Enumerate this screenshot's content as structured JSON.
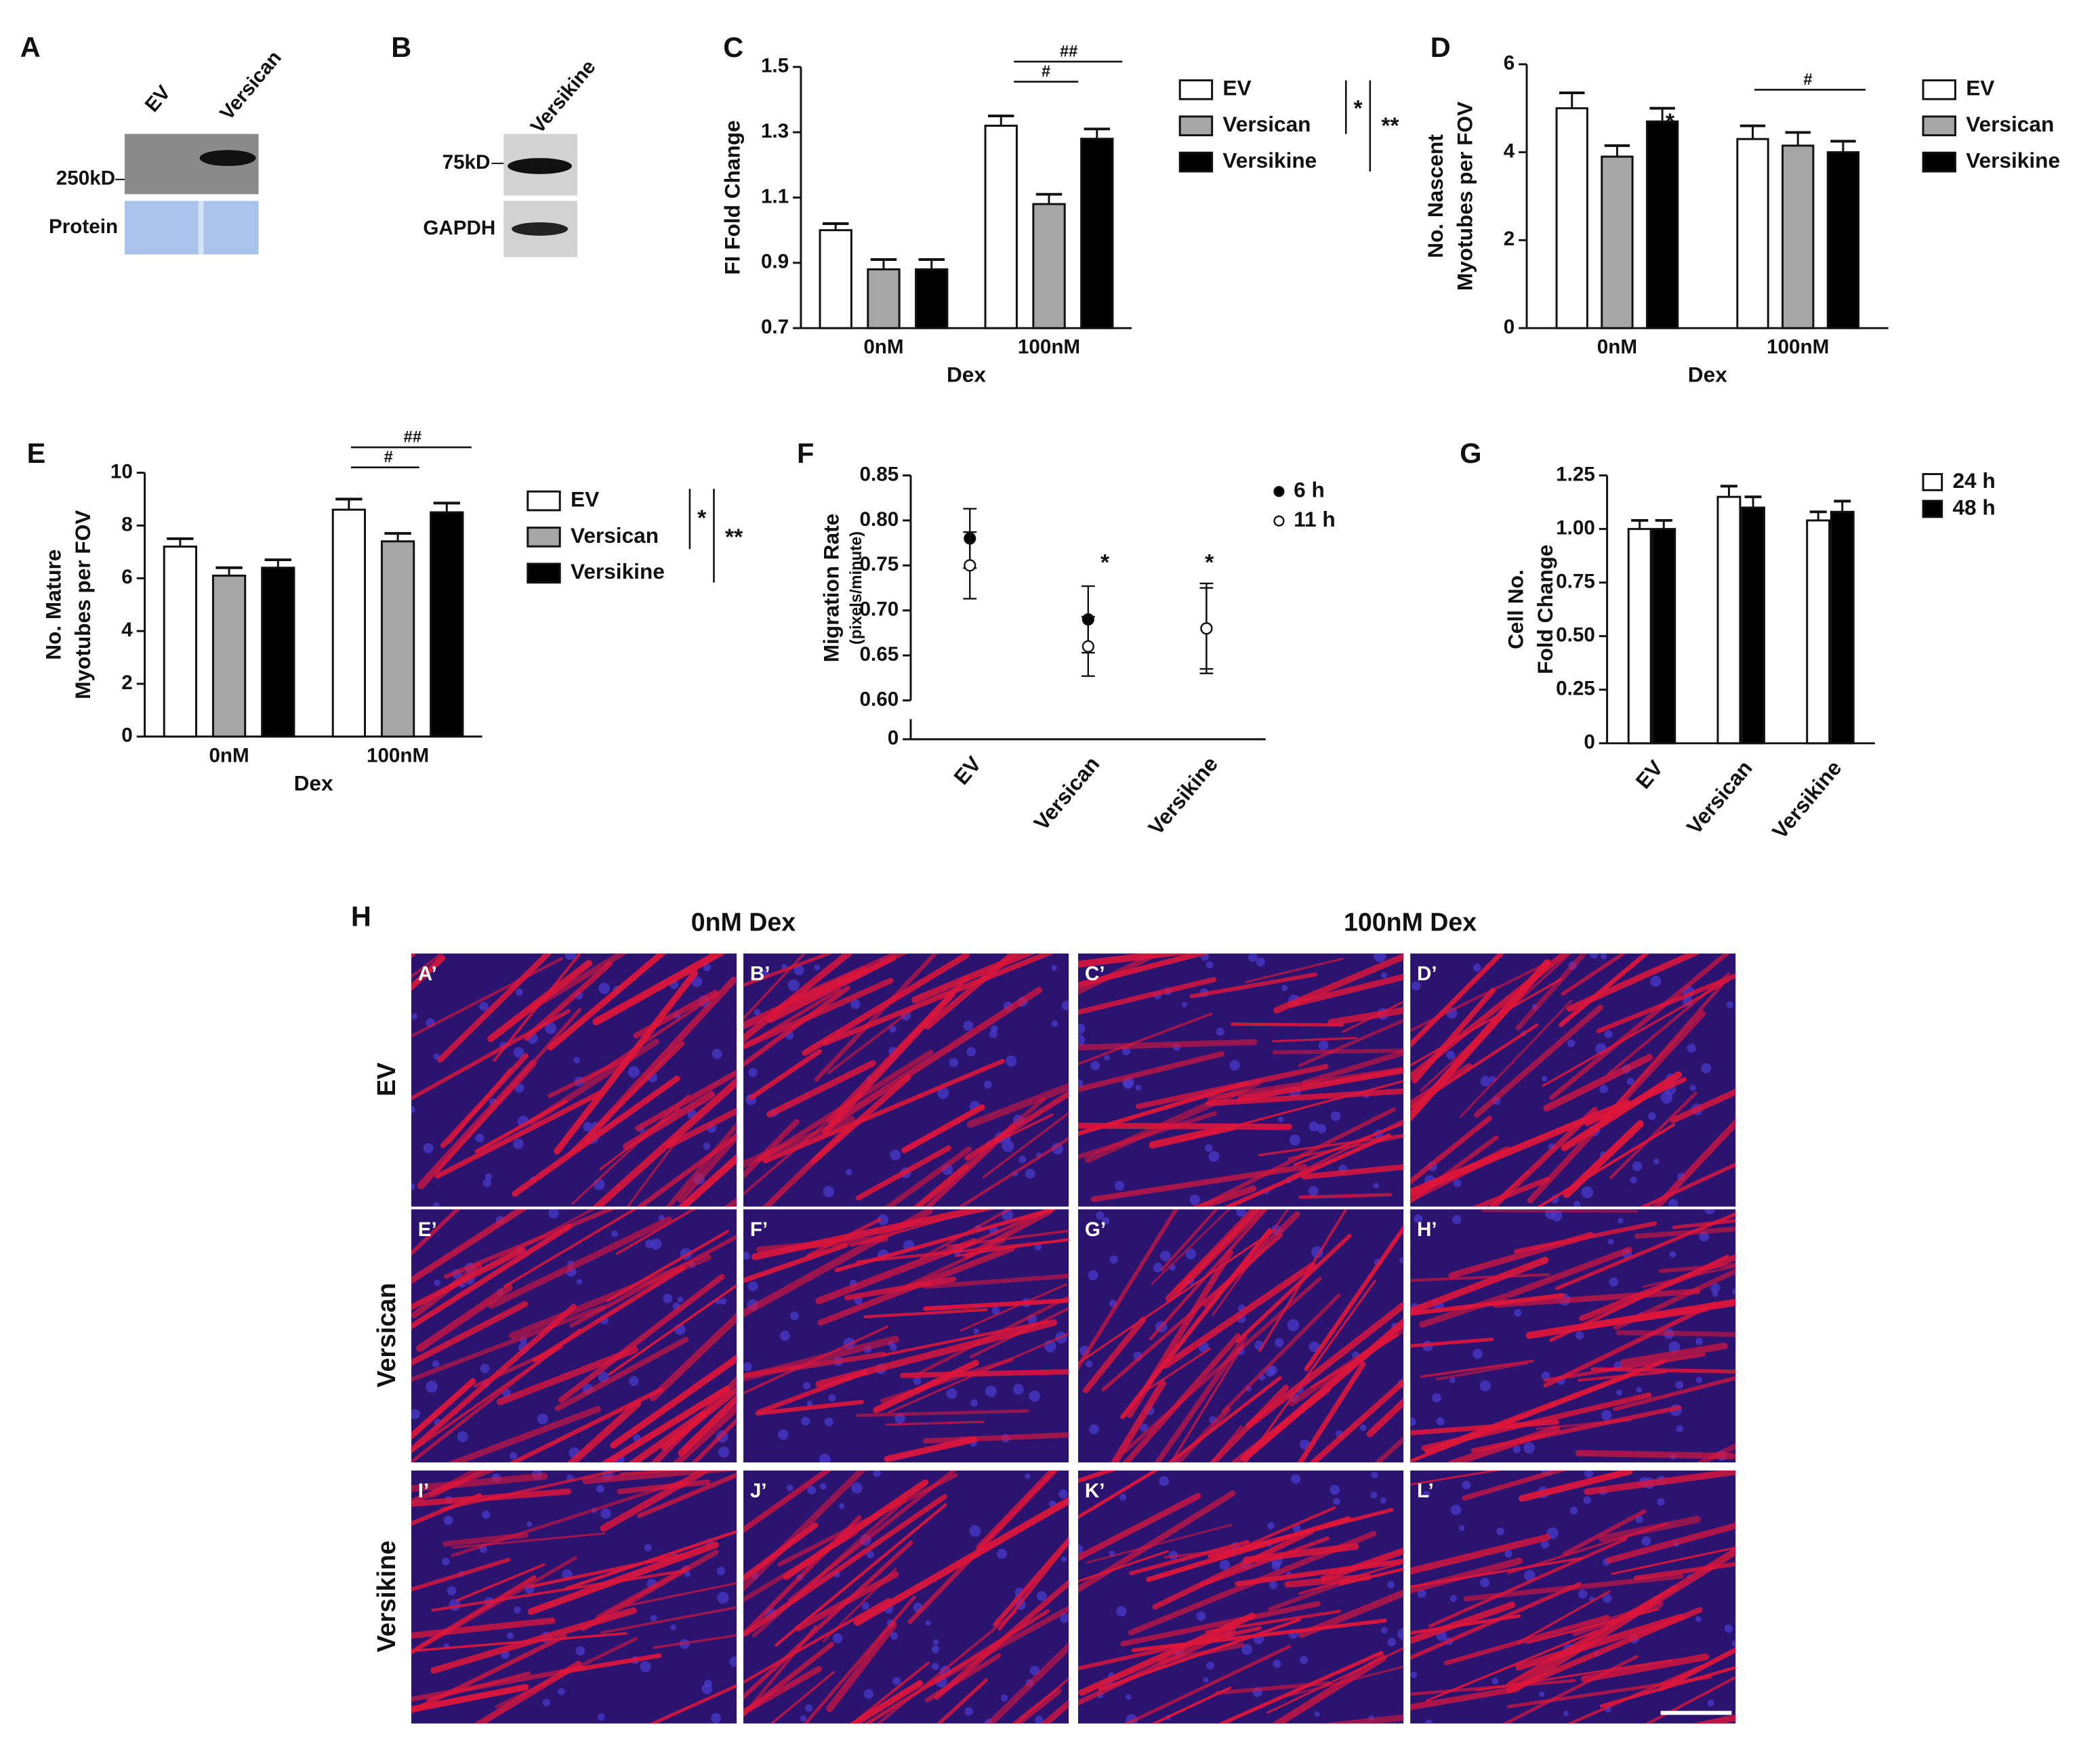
{
  "panels": {
    "A": {
      "label": "A",
      "lanes": [
        "EV",
        "Versican"
      ],
      "marker": "250kD",
      "row": "Protein"
    },
    "B": {
      "label": "B",
      "lanes": [
        "Versikine"
      ],
      "marker": "75kD",
      "row": "GAPDH"
    },
    "H": {
      "label": "H",
      "columns": [
        "0nM Dex",
        "100nM Dex"
      ],
      "rows": [
        "EV",
        "Versican",
        "Versikine"
      ],
      "images": [
        "A’",
        "B’",
        "C’",
        "D’",
        "E’",
        "F’",
        "G’",
        "H’",
        "I’",
        "J’",
        "K’",
        "L’"
      ]
    }
  },
  "chart_data": [
    {
      "type": "bar",
      "panel": "C",
      "ylabel": [
        "FI Fold Change"
      ],
      "xlabel": "Dex",
      "categories": [
        "0nM",
        "100nM"
      ],
      "series": [
        {
          "name": "EV",
          "color": "#ffffff",
          "values": [
            1.0,
            1.32
          ],
          "errors": [
            0.02,
            0.03
          ]
        },
        {
          "name": "Versican",
          "color": "#a6a6a6",
          "values": [
            0.88,
            1.08
          ],
          "errors": [
            0.03,
            0.03
          ]
        },
        {
          "name": "Versikine",
          "color": "#000000",
          "values": [
            0.88,
            1.28
          ],
          "errors": [
            0.03,
            0.03
          ]
        }
      ],
      "ylim": [
        0.7,
        1.5
      ],
      "yticks": [
        0.7,
        0.9,
        1.1,
        1.3,
        1.5
      ],
      "annotations": [
        "##",
        "#",
        "*",
        "**"
      ]
    },
    {
      "type": "bar",
      "panel": "D",
      "ylabel": [
        "No. Nascent",
        "Myotubes per FOV"
      ],
      "xlabel": "Dex",
      "categories": [
        "0nM",
        "100nM"
      ],
      "series": [
        {
          "name": "EV",
          "color": "#ffffff",
          "values": [
            5.0,
            4.3
          ],
          "errors": [
            0.35,
            0.3
          ]
        },
        {
          "name": "Versican",
          "color": "#a6a6a6",
          "values": [
            3.9,
            4.15
          ],
          "errors": [
            0.25,
            0.3
          ]
        },
        {
          "name": "Versikine",
          "color": "#000000",
          "values": [
            4.7,
            4.0
          ],
          "errors": [
            0.3,
            0.25
          ]
        }
      ],
      "ylim": [
        0,
        6
      ],
      "yticks": [
        0,
        2,
        4,
        6
      ],
      "annotations": [
        "*",
        "#"
      ]
    },
    {
      "type": "bar",
      "panel": "E",
      "ylabel": [
        "No. Mature",
        "Myotubes per FOV"
      ],
      "xlabel": "Dex",
      "categories": [
        "0nM",
        "100nM"
      ],
      "series": [
        {
          "name": "EV",
          "color": "#ffffff",
          "values": [
            7.2,
            8.6
          ],
          "errors": [
            0.3,
            0.4
          ]
        },
        {
          "name": "Versican",
          "color": "#a6a6a6",
          "values": [
            6.1,
            7.4
          ],
          "errors": [
            0.3,
            0.3
          ]
        },
        {
          "name": "Versikine",
          "color": "#000000",
          "values": [
            6.4,
            8.5
          ],
          "errors": [
            0.3,
            0.35
          ]
        }
      ],
      "ylim": [
        0,
        10
      ],
      "yticks": [
        0,
        2,
        4,
        6,
        8,
        10
      ],
      "annotations": [
        "##",
        "#",
        "*",
        "**"
      ]
    },
    {
      "type": "scatter",
      "panel": "F",
      "ylabel": [
        "Migration Rate"
      ],
      "ylabel_sub": "(pixels/minute)",
      "categories": [
        "EV",
        "Versican",
        "Versikine"
      ],
      "series": [
        {
          "name": "6 h",
          "color": "#000000",
          "values": [
            0.78,
            0.69,
            0.68
          ],
          "errors": [
            0.033,
            0.037,
            0.05
          ]
        },
        {
          "name": "11 h",
          "color": "#ffffff",
          "values": [
            0.75,
            0.66,
            0.68
          ],
          "errors": [
            0.037,
            0.033,
            0.045
          ]
        }
      ],
      "ylim": [
        0.6,
        0.85
      ],
      "yticks": [
        0,
        {
          "value": 0.6,
          "label": "0.60"
        },
        0.65,
        {
          "value": 0.7,
          "label": "0.70"
        },
        0.75,
        {
          "value": 0.8,
          "label": "0.80"
        },
        0.85
      ],
      "annotations": [
        "*",
        "*"
      ]
    },
    {
      "type": "bar",
      "panel": "G",
      "ylabel": [
        "Cell No.",
        "Fold Change"
      ],
      "categories": [
        "EV",
        "Versican",
        "Versikine"
      ],
      "series": [
        {
          "name": "24 h",
          "color": "#ffffff",
          "values": [
            1.0,
            1.15,
            1.04
          ],
          "errors": [
            0.04,
            0.05,
            0.04
          ]
        },
        {
          "name": "48 h",
          "color": "#000000",
          "values": [
            1.0,
            1.1,
            1.08
          ],
          "errors": [
            0.04,
            0.05,
            0.05
          ]
        }
      ],
      "ylim": [
        0,
        1.25
      ],
      "yticks": [
        0,
        0.25,
        {
          "value": 0.5,
          "label": "0.50"
        },
        0.75,
        {
          "value": 1,
          "label": "1.00"
        },
        1.25
      ]
    }
  ]
}
